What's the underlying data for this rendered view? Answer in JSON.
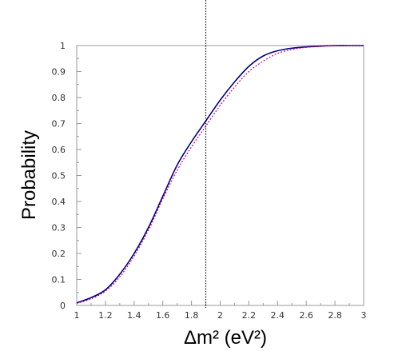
{
  "chart_data": {
    "type": "line",
    "xlabel": "Δm² (eV²)",
    "ylabel": "Probability",
    "xlim": [
      1,
      3
    ],
    "ylim": [
      0,
      1
    ],
    "x_ticks": [
      "1",
      "1.2",
      "1.4",
      "1.6",
      "1.8",
      "2",
      "2.2",
      "2.4",
      "2.6",
      "2.8",
      "3"
    ],
    "y_ticks": [
      "0",
      "0.1",
      "0.2",
      "0.3",
      "0.4",
      "0.5",
      "0.6",
      "0.7",
      "0.8",
      "0.9",
      "1"
    ],
    "vertical_line_x": 1.9,
    "x": [
      1.0,
      1.1,
      1.2,
      1.3,
      1.4,
      1.5,
      1.6,
      1.7,
      1.8,
      1.9,
      2.0,
      2.1,
      2.2,
      2.3,
      2.4,
      2.5,
      2.6,
      2.7,
      2.8,
      2.9,
      3.0
    ],
    "series": [
      {
        "color": "#000080",
        "style": "solid",
        "values": [
          0.01,
          0.03,
          0.06,
          0.12,
          0.2,
          0.3,
          0.42,
          0.54,
          0.63,
          0.71,
          0.79,
          0.86,
          0.92,
          0.96,
          0.98,
          0.99,
          0.995,
          0.998,
          1.0,
          1.0,
          1.0
        ]
      },
      {
        "color": "#c00080",
        "style": "dotted",
        "values": [
          0.008,
          0.025,
          0.055,
          0.11,
          0.19,
          0.29,
          0.41,
          0.52,
          0.61,
          0.69,
          0.77,
          0.84,
          0.9,
          0.94,
          0.97,
          0.985,
          0.993,
          0.997,
          0.999,
          1.0,
          1.0
        ]
      }
    ],
    "grid": false,
    "colors": {
      "axes": "#999999",
      "vline": "#000000",
      "text": "#333333"
    }
  }
}
